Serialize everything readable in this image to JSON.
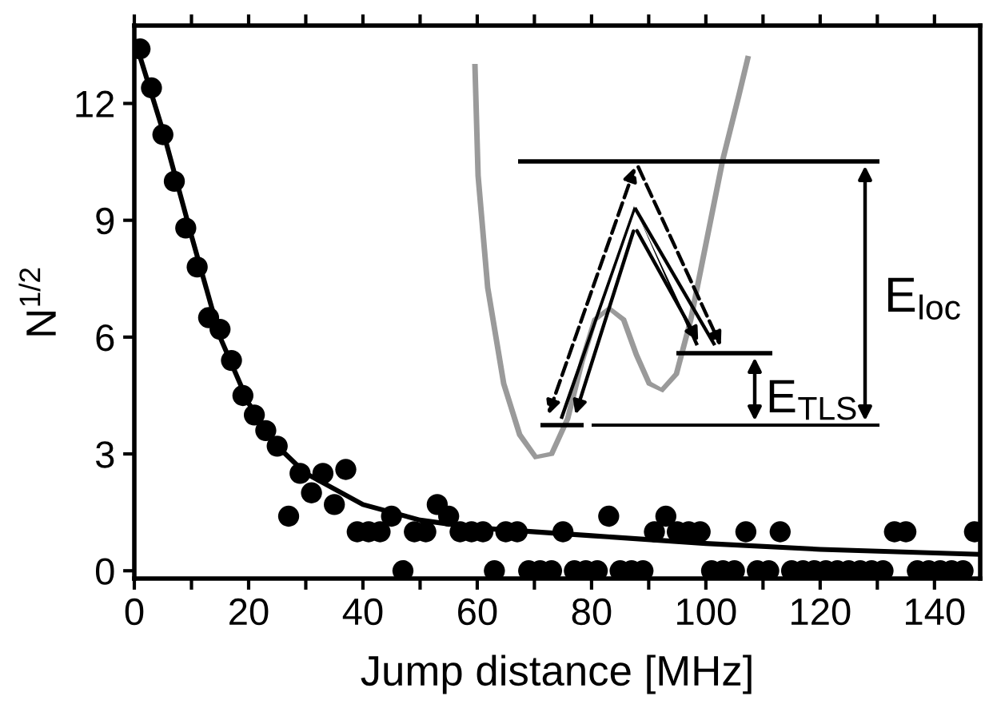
{
  "chart_data": {
    "type": "scatter",
    "xlabel": "Jump distance [MHz]",
    "ylabel": "N$^{1/2}$",
    "xlim": [
      0,
      148
    ],
    "ylim": [
      -0.2,
      14
    ],
    "xticks": [
      0,
      {
        "value": 10,
        "label": null
      },
      20,
      {
        "value": 30,
        "label": null
      },
      40,
      {
        "value": 50,
        "label": null
      },
      60,
      {
        "value": 70,
        "label": null
      },
      80,
      {
        "value": 90,
        "label": null
      },
      100,
      {
        "value": 110,
        "label": null
      },
      120,
      {
        "value": 130,
        "label": null
      },
      140
    ],
    "yticks": [
      0,
      3,
      6,
      9,
      12
    ],
    "grid": false,
    "legend": false,
    "marker": "circle",
    "annotations": [
      "E$_{loc}$",
      "E$_{TLS}$"
    ],
    "series": [
      {
        "color": "#000000",
        "x": [
          1,
          3,
          5,
          7,
          9,
          11,
          13,
          15,
          17,
          19,
          21,
          23,
          25,
          27,
          29,
          31,
          33,
          35,
          37,
          39,
          41,
          43,
          45,
          47,
          49,
          51,
          53,
          55,
          57,
          59,
          61,
          63,
          65,
          67,
          69,
          71,
          73,
          75,
          77,
          79,
          81,
          83,
          85,
          87,
          89,
          91,
          93,
          95,
          97,
          99,
          101,
          103,
          105,
          107,
          109,
          111,
          113,
          115,
          117,
          119,
          121,
          123,
          125,
          127,
          129,
          131,
          133,
          135,
          137,
          139,
          141,
          143,
          145,
          147
        ],
        "values": [
          13.4,
          12.4,
          11.2,
          10.0,
          8.8,
          7.8,
          6.5,
          6.2,
          5.4,
          4.5,
          4.0,
          3.6,
          3.2,
          1.4,
          2.5,
          2.0,
          2.5,
          1.7,
          2.6,
          1.0,
          1.0,
          1.0,
          1.4,
          0,
          1.0,
          1.0,
          1.7,
          1.4,
          1.0,
          1.0,
          1.0,
          0,
          1.0,
          1.0,
          0,
          0,
          0,
          1.0,
          0,
          0,
          0,
          1.4,
          0,
          0,
          0,
          1.0,
          1.4,
          1.0,
          1.0,
          1.0,
          0,
          0,
          0,
          1.0,
          0,
          0,
          1.0,
          0,
          0,
          0,
          0,
          0,
          0,
          0,
          0,
          0,
          1.0,
          1.0,
          0,
          0,
          0,
          0,
          0,
          1.0
        ]
      },
      {
        "type": "line",
        "color": "#000000",
        "marker": "none",
        "x": [
          1,
          5,
          10,
          15,
          20,
          25,
          30,
          40,
          50,
          60,
          80,
          100,
          120,
          148
        ],
        "values": [
          13.2,
          11.3,
          8.6,
          6.0,
          4.3,
          3.2,
          2.5,
          1.7,
          1.3,
          1.1,
          0.9,
          0.7,
          0.55,
          0.42
        ]
      }
    ]
  }
}
